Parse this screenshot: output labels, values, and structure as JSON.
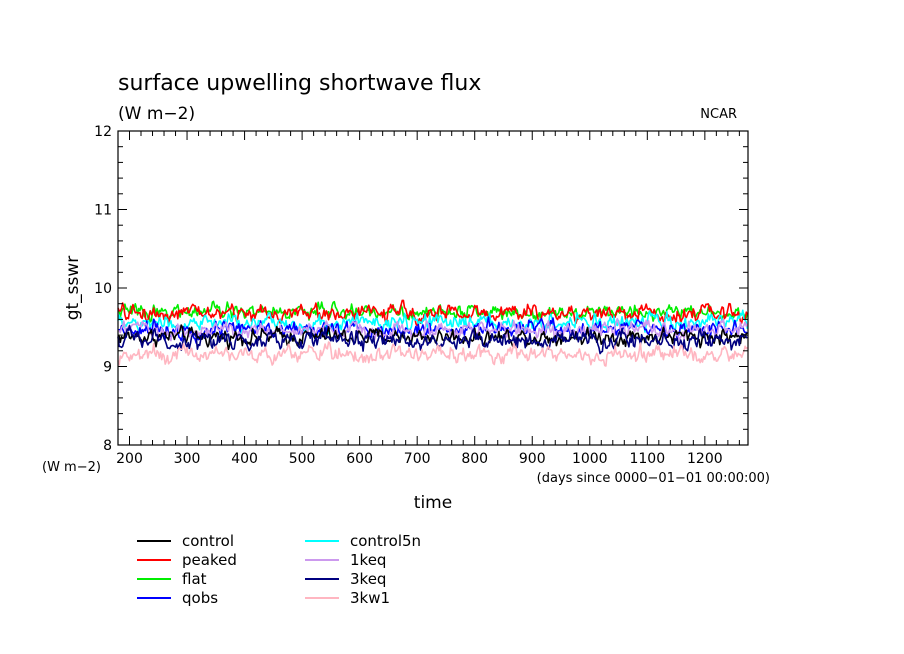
{
  "chart_data": {
    "type": "line",
    "title": "surface upwelling shortwave flux",
    "units": "(W m−2)",
    "source_label": "NCAR",
    "ylabel": "gt_sswr",
    "yunits_label": "(W m−2)",
    "xlabel": "time",
    "xunits_label": "(days since 0000−01−01 00:00:00)",
    "xlim": [
      180,
      1275
    ],
    "ylim": [
      8,
      12
    ],
    "xticks": [
      200,
      300,
      400,
      500,
      600,
      700,
      800,
      900,
      1000,
      1100,
      1200
    ],
    "yticks": [
      8,
      9,
      10,
      11,
      12
    ],
    "grid": false,
    "legend_position": "bottom-left",
    "series": [
      {
        "name": "control",
        "color": "#000000",
        "mean": 9.38,
        "amplitude": 0.1
      },
      {
        "name": "peaked",
        "color": "#ff0000",
        "mean": 9.68,
        "amplitude": 0.1
      },
      {
        "name": "flat",
        "color": "#00ee00",
        "mean": 9.7,
        "amplitude": 0.09
      },
      {
        "name": "qobs",
        "color": "#0000ff",
        "mean": 9.48,
        "amplitude": 0.1
      },
      {
        "name": "control5n",
        "color": "#00ffff",
        "mean": 9.55,
        "amplitude": 0.1
      },
      {
        "name": "1keq",
        "color": "#cc99ee",
        "mean": 9.46,
        "amplitude": 0.1
      },
      {
        "name": "3keq",
        "color": "#000080",
        "mean": 9.33,
        "amplitude": 0.11
      },
      {
        "name": "3kw1",
        "color": "#ffb6c1",
        "mean": 9.16,
        "amplitude": 0.1
      }
    ]
  }
}
